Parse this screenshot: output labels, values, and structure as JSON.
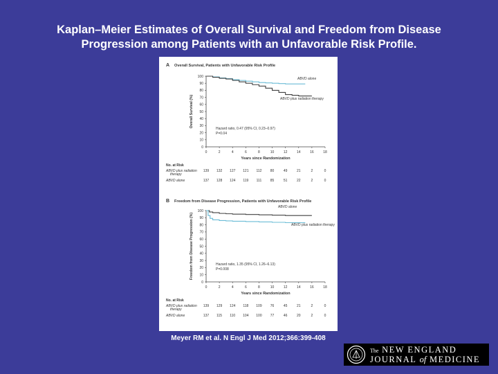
{
  "slide": {
    "title_line1": "Kaplan–Meier Estimates of Overall Survival and Freedom from Disease",
    "title_line2": "Progression among Patients with an Unfavorable Risk Profile.",
    "citation": "Meyer RM et al. N Engl J Med 2012;366:399-408",
    "journal": {
      "prefix": "The",
      "line1": "NEW ENGLAND",
      "line2_a": "JOURNAL",
      "line2_of": "of",
      "line2_b": "MEDICINE"
    }
  },
  "chart_data": [
    {
      "type": "line",
      "panel_label": "A",
      "title": "Overall Survival, Patients with Unfavorable Risk Profile",
      "xlabel": "Years since Randomization",
      "ylabel": "Overall Survival (%)",
      "xlim": [
        0,
        18
      ],
      "ylim": [
        0,
        100
      ],
      "xticks": [
        "0",
        "2",
        "4",
        "6",
        "8",
        "10",
        "12",
        "14",
        "16",
        "18"
      ],
      "yticks": [
        "0",
        "10",
        "20",
        "30",
        "40",
        "50",
        "60",
        "70",
        "80",
        "90",
        "100"
      ],
      "annotation_line1": "Hazard ratio, 0.47 (95% CI, 0.23–0.97)",
      "annotation_line2": "P=0.04",
      "series": [
        {
          "name": "ABVD alone",
          "color": "#6bbcd6",
          "points": [
            [
              0,
              100
            ],
            [
              1,
              99
            ],
            [
              2,
              97.5
            ],
            [
              3,
              96.5
            ],
            [
              4,
              95
            ],
            [
              5,
              94
            ],
            [
              6,
              93
            ],
            [
              7,
              92
            ],
            [
              8,
              91
            ],
            [
              9,
              90.5
            ],
            [
              10,
              90
            ],
            [
              11,
              89.5
            ],
            [
              12,
              89
            ],
            [
              13,
              89
            ],
            [
              15,
              89
            ]
          ]
        },
        {
          "name": "ABVD plus radiation therapy",
          "color": "#404040",
          "points": [
            [
              0,
              100
            ],
            [
              1,
              98.5
            ],
            [
              2,
              97
            ],
            [
              3,
              96
            ],
            [
              4,
              94
            ],
            [
              5,
              92
            ],
            [
              6,
              90
            ],
            [
              7,
              88
            ],
            [
              8,
              86
            ],
            [
              9,
              83
            ],
            [
              10,
              80
            ],
            [
              11,
              77
            ],
            [
              12,
              74
            ],
            [
              13,
              73
            ],
            [
              14,
              72
            ],
            [
              16,
              72
            ]
          ]
        }
      ],
      "risk_table": {
        "header": "No. at Risk",
        "rows": [
          {
            "label": "ABVD plus radiation therapy",
            "values": [
              "139",
              "132",
              "127",
              "121",
              "112",
              "80",
              "49",
              "21",
              "2",
              "0"
            ]
          },
          {
            "label": "ABVD alone",
            "values": [
              "137",
              "128",
              "124",
              "119",
              "111",
              "85",
              "51",
              "22",
              "2",
              "0"
            ]
          }
        ]
      }
    },
    {
      "type": "line",
      "panel_label": "B",
      "title": "Freedom from Disease Progression, Patients with Unfavorable Risk Profile",
      "xlabel": "Years since Randomization",
      "ylabel": "Freedom from Disease Progression (%)",
      "xlim": [
        0,
        18
      ],
      "ylim": [
        0,
        100
      ],
      "xticks": [
        "0",
        "2",
        "4",
        "6",
        "8",
        "10",
        "12",
        "14",
        "16",
        "18"
      ],
      "yticks": [
        "0",
        "10",
        "20",
        "30",
        "40",
        "50",
        "60",
        "70",
        "80",
        "90",
        "100"
      ],
      "annotation_line1": "Hazard ratio, 1.35 (95% CI, 1.26–6.13)",
      "annotation_line2": "P=0.008",
      "series": [
        {
          "name": "ABVD plus radiation therapy",
          "color": "#404040",
          "points": [
            [
              0,
              100
            ],
            [
              0.5,
              98
            ],
            [
              1,
              97
            ],
            [
              2,
              96
            ],
            [
              3,
              95.5
            ],
            [
              4,
              95
            ],
            [
              6,
              94.5
            ],
            [
              8,
              94
            ],
            [
              10,
              93.5
            ],
            [
              12,
              93
            ],
            [
              14,
              93
            ],
            [
              16,
              93
            ]
          ]
        },
        {
          "name": "ABVD alone",
          "color": "#6bbcd6",
          "points": [
            [
              0,
              100
            ],
            [
              0.3,
              93
            ],
            [
              0.6,
              89
            ],
            [
              1,
              87
            ],
            [
              2,
              86
            ],
            [
              3,
              85.5
            ],
            [
              4,
              85
            ],
            [
              6,
              84.5
            ],
            [
              8,
              84
            ],
            [
              10,
              83.5
            ],
            [
              12,
              83
            ],
            [
              14,
              83
            ],
            [
              15,
              83
            ]
          ]
        }
      ],
      "risk_table": {
        "header": "No. at Risk",
        "rows": [
          {
            "label": "ABVD plus radiation therapy",
            "values": [
              "139",
              "129",
              "124",
              "118",
              "109",
              "76",
              "45",
              "21",
              "2",
              "0"
            ]
          },
          {
            "label": "ABVD alone",
            "values": [
              "137",
              "115",
              "110",
              "104",
              "100",
              "77",
              "46",
              "20",
              "2",
              "0"
            ]
          }
        ]
      }
    }
  ]
}
